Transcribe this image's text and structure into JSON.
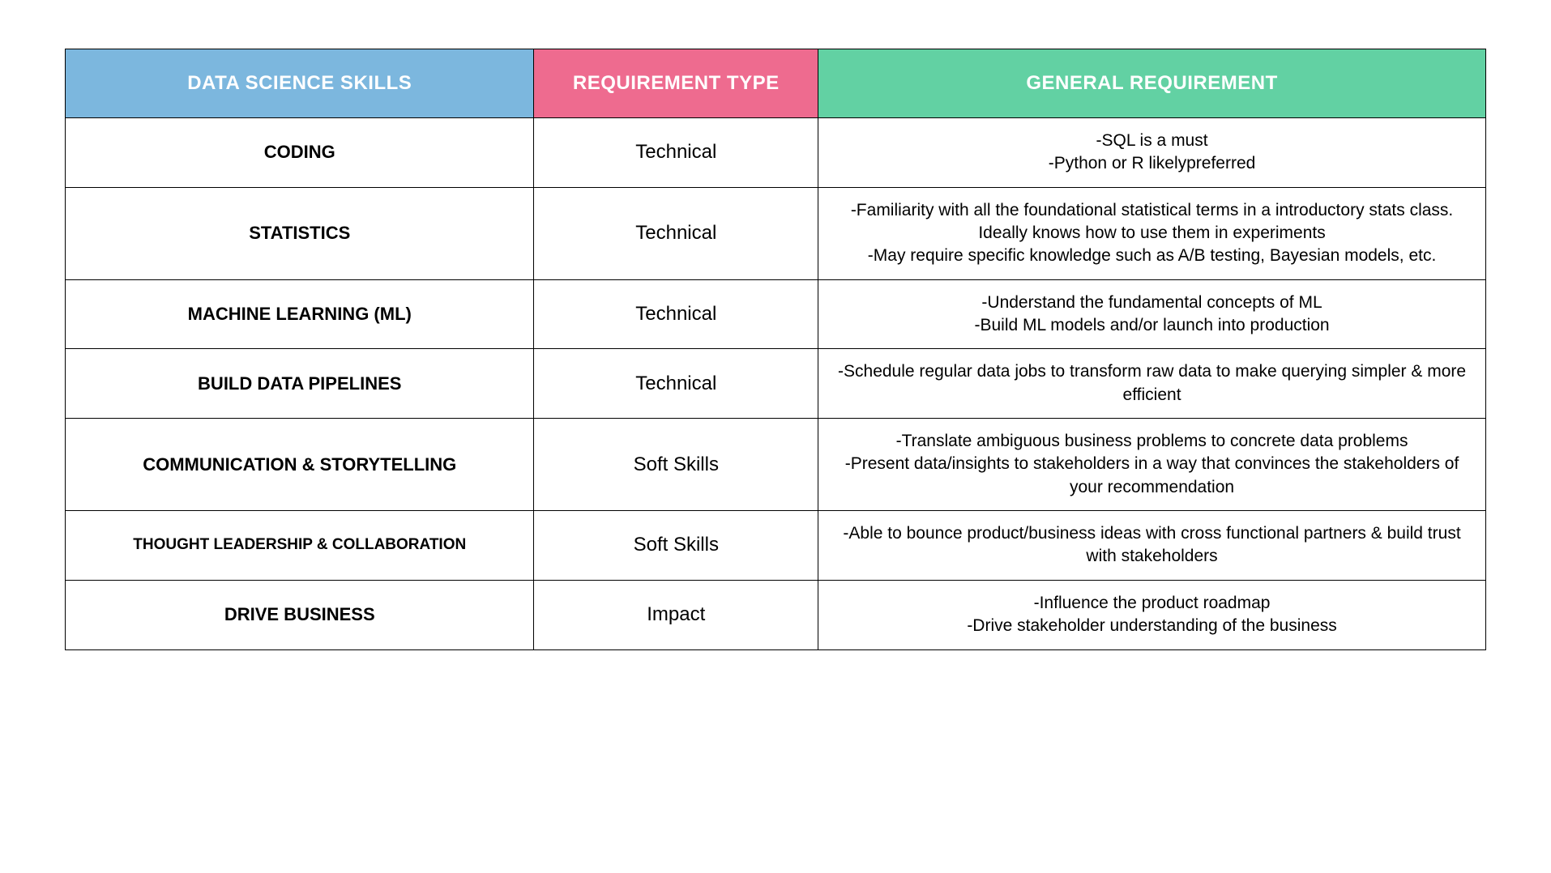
{
  "table": {
    "columns": [
      {
        "label": "DATA SCIENCE SKILLS",
        "bg_color": "#7cb7de",
        "width_pct": 33
      },
      {
        "label": "REQUIREMENT TYPE",
        "bg_color": "#ee6b8f",
        "width_pct": 20
      },
      {
        "label": "GENERAL REQUIREMENT",
        "bg_color": "#62d1a3",
        "width_pct": 47
      }
    ],
    "header_text_color": "#ffffff",
    "header_fontsize": 24,
    "border_color": "#000000",
    "body_fontsize": 22,
    "rows": [
      {
        "skill": "CODING",
        "type": "Technical",
        "requirements": [
          "-SQL is a must",
          "-Python or R likelypreferred"
        ]
      },
      {
        "skill": "STATISTICS",
        "type": "Technical",
        "requirements": [
          "-Familiarity with all the foundational statistical terms in a introductory stats class. Ideally knows how to use them in experiments",
          "-May require specific knowledge such as A/B testing, Bayesian models, etc."
        ]
      },
      {
        "skill": "MACHINE LEARNING (ML)",
        "type": "Technical",
        "requirements": [
          "-Understand the fundamental concepts of ML",
          "-Build ML models and/or launch into production"
        ]
      },
      {
        "skill": "BUILD DATA PIPELINES",
        "type": "Technical",
        "requirements": [
          "-Schedule regular data jobs to transform raw data to make querying simpler & more efficient"
        ]
      },
      {
        "skill": "COMMUNICATION & STORYTELLING",
        "type": "Soft Skills",
        "requirements": [
          "-Translate ambiguous business problems to concrete data problems",
          "-Present data/insights to stakeholders in a way that convinces the stakeholders of your recommendation"
        ]
      },
      {
        "skill": "THOUGHT LEADERSHIP & COLLABORATION",
        "type": "Soft Skills",
        "skill_small": true,
        "requirements": [
          "-Able to bounce product/business ideas with cross functional partners & build trust with stakeholders"
        ]
      },
      {
        "skill": "DRIVE BUSINESS",
        "type": "Impact",
        "requirements": [
          "-Influence the product roadmap",
          "-Drive stakeholder understanding of the business"
        ]
      }
    ]
  }
}
